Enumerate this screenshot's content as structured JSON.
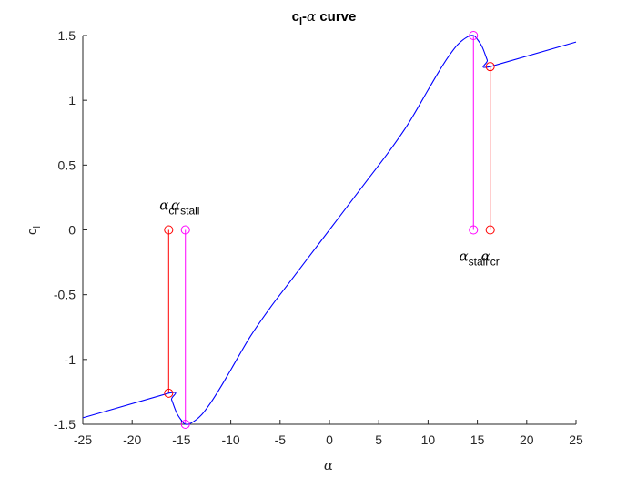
{
  "chart_data": {
    "type": "line",
    "title": {
      "main": "c",
      "sub": "l",
      "dash": "-",
      "alpha": "α",
      "rest": " curve"
    },
    "xlabel": "α",
    "ylabel": {
      "main": "c",
      "sub": "l"
    },
    "xlim": [
      -25,
      25
    ],
    "ylim": [
      -1.5,
      1.5
    ],
    "xticks": [
      -25,
      -20,
      -15,
      -10,
      -5,
      0,
      5,
      10,
      15,
      20,
      25
    ],
    "yticks": [
      -1.5,
      -1,
      -0.5,
      0,
      0.5,
      1,
      1.5
    ],
    "grid": false,
    "curve": {
      "color": "#0000ff",
      "points": [
        [
          -25,
          -1.45
        ],
        [
          -16.3,
          -1.26
        ],
        [
          -16.0,
          -1.31
        ],
        [
          -15.5,
          -1.41
        ],
        [
          -15.0,
          -1.47
        ],
        [
          -14.6,
          -1.5
        ],
        [
          -14.0,
          -1.49
        ],
        [
          -13.0,
          -1.43
        ],
        [
          -12.0,
          -1.33
        ],
        [
          -11.0,
          -1.21
        ],
        [
          -10.0,
          -1.08
        ],
        [
          -8.0,
          -0.82
        ],
        [
          -6.0,
          -0.6
        ],
        [
          -4.0,
          -0.4
        ],
        [
          -2.0,
          -0.2
        ],
        [
          0,
          0
        ],
        [
          2.0,
          0.2
        ],
        [
          4.0,
          0.4
        ],
        [
          6.0,
          0.6
        ],
        [
          8.0,
          0.82
        ],
        [
          10.0,
          1.08
        ],
        [
          11.0,
          1.21
        ],
        [
          12.0,
          1.33
        ],
        [
          13.0,
          1.43
        ],
        [
          14.0,
          1.49
        ],
        [
          14.6,
          1.5
        ],
        [
          15.0,
          1.47
        ],
        [
          15.5,
          1.41
        ],
        [
          16.0,
          1.31
        ],
        [
          16.3,
          1.26
        ],
        [
          25,
          1.45
        ]
      ]
    },
    "markers": [
      {
        "name": "alpha-cr-neg",
        "x": -16.3,
        "y_top": 0,
        "y_bottom": -1.26,
        "color": "#ff0000"
      },
      {
        "name": "alpha-stall-neg",
        "x": -14.6,
        "y_top": 0,
        "y_bottom": -1.5,
        "color": "#ff00ff"
      },
      {
        "name": "alpha-stall-pos",
        "x": 14.6,
        "y_top": 1.5,
        "y_bottom": 0,
        "color": "#ff00ff"
      },
      {
        "name": "alpha-cr-pos",
        "x": 16.3,
        "y_top": 1.26,
        "y_bottom": 0,
        "color": "#ff0000"
      }
    ],
    "annotations": [
      {
        "name": "label-alpha-cr-neg",
        "symbol": "α",
        "sub": "cr",
        "x": -16.3,
        "y": 0,
        "position": "above"
      },
      {
        "name": "label-alpha-stall-neg",
        "symbol": "α",
        "sub": "stall",
        "x": -14.6,
        "y": 0,
        "position": "above"
      },
      {
        "name": "label-alpha-stall-pos",
        "symbol": "α",
        "sub": "stall",
        "x": 14.6,
        "y": 0,
        "position": "below"
      },
      {
        "name": "label-alpha-cr-pos",
        "symbol": "α",
        "sub": "cr",
        "x": 16.3,
        "y": 0,
        "position": "below"
      }
    ]
  }
}
